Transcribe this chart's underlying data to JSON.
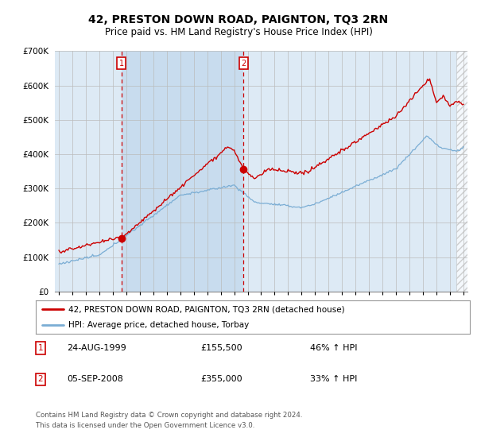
{
  "title": "42, PRESTON DOWN ROAD, PAIGNTON, TQ3 2RN",
  "subtitle": "Price paid vs. HM Land Registry's House Price Index (HPI)",
  "purchase1_date": "24-AUG-1999",
  "purchase1_price": 155500,
  "purchase1_label": "46% ↑ HPI",
  "purchase2_date": "05-SEP-2008",
  "purchase2_price": 355000,
  "purchase2_label": "33% ↑ HPI",
  "purchase1_x": 1999.648,
  "purchase2_x": 2008.677,
  "ylim": [
    0,
    700000
  ],
  "xlim_start": 1994.7,
  "xlim_end": 2025.3,
  "legend_line1": "42, PRESTON DOWN ROAD, PAIGNTON, TQ3 2RN (detached house)",
  "legend_line2": "HPI: Average price, detached house, Torbay",
  "footer": "Contains HM Land Registry data © Crown copyright and database right 2024.\nThis data is licensed under the Open Government Licence v3.0.",
  "line_color_red": "#cc0000",
  "line_color_blue": "#7aadd4",
  "bg_color": "#ddeaf5",
  "grid_color": "#bbbbbb",
  "annotation_box_color": "#cc0000",
  "shade_color": "#c8dcee"
}
